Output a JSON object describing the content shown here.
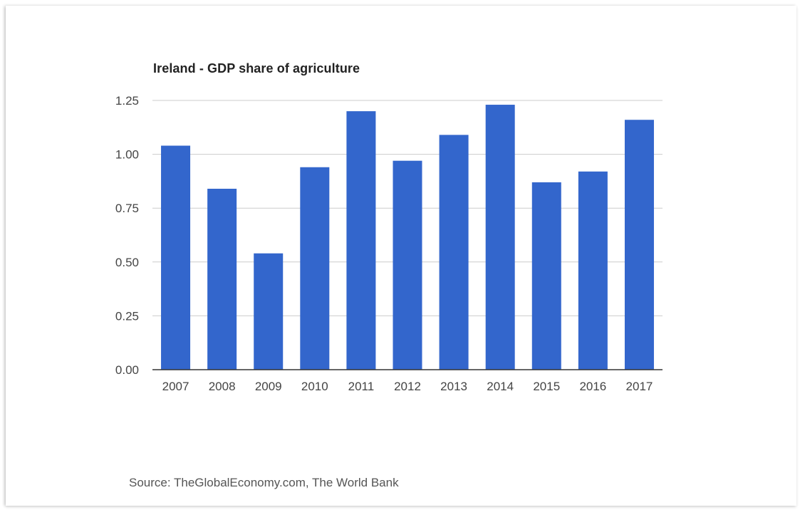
{
  "colors": {
    "bar": "#3366cc",
    "gridline": "#cccccc",
    "baseline": "#333333",
    "tick_text": "#444444"
  },
  "chart_data": {
    "type": "bar",
    "title": "Ireland - GDP share of agriculture",
    "categories": [
      "2007",
      "2008",
      "2009",
      "2010",
      "2011",
      "2012",
      "2013",
      "2014",
      "2015",
      "2016",
      "2017"
    ],
    "values": [
      1.04,
      0.84,
      0.54,
      0.94,
      1.2,
      0.97,
      1.09,
      1.23,
      0.87,
      0.92,
      1.16
    ],
    "xlabel": "",
    "ylabel": "",
    "ylim": [
      0,
      1.25
    ],
    "yticks": [
      "0.00",
      "0.25",
      "0.50",
      "0.75",
      "1.00",
      "1.25"
    ],
    "grid": true,
    "legend": "none"
  },
  "source": "Source: TheGlobalEconomy.com, The World Bank"
}
